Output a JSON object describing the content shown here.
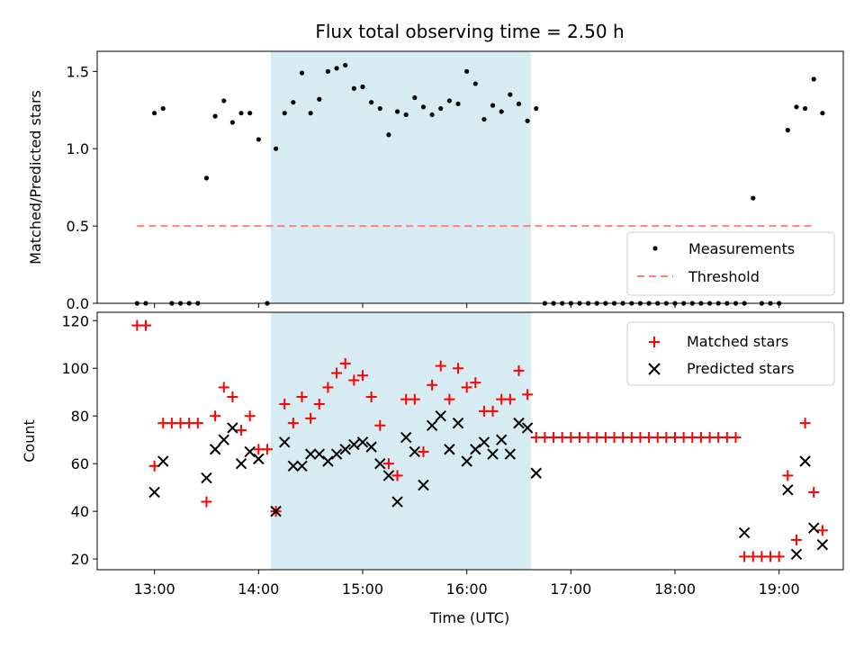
{
  "title": "Flux total observing time = 2.50 h",
  "xlabel": "Time (UTC)",
  "colors": {
    "measurement": "#000000",
    "threshold": "#ff8080",
    "matched": "#ff0000",
    "predicted": "#000000",
    "span": "#add8e6"
  },
  "chart_data": [
    {
      "type": "scatter",
      "ylabel": "Matched/Predicted stars",
      "xlim": [
        "12:27",
        "19:37"
      ],
      "ylim": [
        0,
        1.63
      ],
      "yticks": [
        0.0,
        0.5,
        1.0,
        1.5
      ],
      "ytick_labels": [
        "0.0",
        "0.5",
        "1.0",
        "1.5"
      ],
      "xticks": [
        "13:00",
        "14:00",
        "15:00",
        "16:00",
        "17:00",
        "18:00",
        "19:00"
      ],
      "shaded_span": [
        "14:07",
        "16:37"
      ],
      "legend": {
        "position": "lower right",
        "entries": [
          "Measurements",
          "Threshold"
        ]
      },
      "threshold": {
        "name": "Threshold",
        "value": 0.5,
        "x_range": [
          "12:50",
          "19:20"
        ]
      },
      "series": [
        {
          "name": "Measurements",
          "points": [
            [
              "12:50",
              0
            ],
            [
              "12:55",
              0
            ],
            [
              "13:00",
              1.23
            ],
            [
              "13:05",
              1.26
            ],
            [
              "13:10",
              0
            ],
            [
              "13:15",
              0
            ],
            [
              "13:20",
              0
            ],
            [
              "13:25",
              0
            ],
            [
              "13:30",
              0.81
            ],
            [
              "13:35",
              1.21
            ],
            [
              "13:40",
              1.31
            ],
            [
              "13:45",
              1.17
            ],
            [
              "13:50",
              1.23
            ],
            [
              "13:55",
              1.23
            ],
            [
              "14:00",
              1.06
            ],
            [
              "14:05",
              0
            ],
            [
              "14:10",
              1.0
            ],
            [
              "14:15",
              1.23
            ],
            [
              "14:20",
              1.3
            ],
            [
              "14:25",
              1.49
            ],
            [
              "14:30",
              1.23
            ],
            [
              "14:35",
              1.32
            ],
            [
              "14:40",
              1.5
            ],
            [
              "14:45",
              1.52
            ],
            [
              "14:50",
              1.54
            ],
            [
              "14:55",
              1.39
            ],
            [
              "15:00",
              1.4
            ],
            [
              "15:05",
              1.3
            ],
            [
              "15:10",
              1.26
            ],
            [
              "15:15",
              1.09
            ],
            [
              "15:20",
              1.24
            ],
            [
              "15:25",
              1.22
            ],
            [
              "15:30",
              1.33
            ],
            [
              "15:35",
              1.27
            ],
            [
              "15:40",
              1.22
            ],
            [
              "15:45",
              1.26
            ],
            [
              "15:50",
              1.31
            ],
            [
              "15:55",
              1.29
            ],
            [
              "16:00",
              1.5
            ],
            [
              "16:05",
              1.42
            ],
            [
              "16:10",
              1.19
            ],
            [
              "16:15",
              1.28
            ],
            [
              "16:20",
              1.24
            ],
            [
              "16:25",
              1.35
            ],
            [
              "16:30",
              1.29
            ],
            [
              "16:35",
              1.18
            ],
            [
              "16:40",
              1.26
            ],
            [
              "16:45",
              0
            ],
            [
              "16:50",
              0
            ],
            [
              "16:55",
              0
            ],
            [
              "17:00",
              0
            ],
            [
              "17:05",
              0
            ],
            [
              "17:10",
              0
            ],
            [
              "17:15",
              0
            ],
            [
              "17:20",
              0
            ],
            [
              "17:25",
              0
            ],
            [
              "17:30",
              0
            ],
            [
              "17:35",
              0
            ],
            [
              "17:40",
              0
            ],
            [
              "17:45",
              0
            ],
            [
              "17:50",
              0
            ],
            [
              "17:55",
              0
            ],
            [
              "18:00",
              0
            ],
            [
              "18:05",
              0
            ],
            [
              "18:10",
              0
            ],
            [
              "18:15",
              0
            ],
            [
              "18:20",
              0
            ],
            [
              "18:25",
              0
            ],
            [
              "18:30",
              0
            ],
            [
              "18:35",
              0
            ],
            [
              "18:40",
              0
            ],
            [
              "18:45",
              0.68
            ],
            [
              "18:50",
              0
            ],
            [
              "18:55",
              0
            ],
            [
              "19:00",
              0
            ],
            [
              "19:05",
              1.12
            ],
            [
              "19:10",
              1.27
            ],
            [
              "19:15",
              1.26
            ],
            [
              "19:20",
              1.45
            ],
            [
              "19:25",
              1.23
            ]
          ]
        }
      ]
    },
    {
      "type": "scatter",
      "ylabel": "Count",
      "xlim": [
        "12:27",
        "19:37"
      ],
      "ylim": [
        15.5,
        123.5
      ],
      "yticks": [
        20,
        40,
        60,
        80,
        100,
        120
      ],
      "ytick_labels": [
        "20",
        "40",
        "60",
        "80",
        "100",
        "120"
      ],
      "xticks": [
        "13:00",
        "14:00",
        "15:00",
        "16:00",
        "17:00",
        "18:00",
        "19:00"
      ],
      "shaded_span": [
        "14:07",
        "16:37"
      ],
      "legend": {
        "position": "upper right",
        "entries": [
          "Matched stars",
          "Predicted stars"
        ]
      },
      "series": [
        {
          "name": "Matched stars",
          "points": [
            [
              "12:50",
              118
            ],
            [
              "12:55",
              118
            ],
            [
              "13:00",
              59
            ],
            [
              "13:05",
              77
            ],
            [
              "13:10",
              77
            ],
            [
              "13:15",
              77
            ],
            [
              "13:20",
              77
            ],
            [
              "13:25",
              77
            ],
            [
              "13:30",
              44
            ],
            [
              "13:35",
              80
            ],
            [
              "13:40",
              92
            ],
            [
              "13:45",
              88
            ],
            [
              "13:50",
              74
            ],
            [
              "13:55",
              80
            ],
            [
              "14:00",
              66
            ],
            [
              "14:05",
              66
            ],
            [
              "14:10",
              40
            ],
            [
              "14:15",
              85
            ],
            [
              "14:20",
              77
            ],
            [
              "14:25",
              88
            ],
            [
              "14:30",
              79
            ],
            [
              "14:35",
              85
            ],
            [
              "14:40",
              92
            ],
            [
              "14:45",
              98
            ],
            [
              "14:50",
              102
            ],
            [
              "14:55",
              95
            ],
            [
              "15:00",
              97
            ],
            [
              "15:05",
              88
            ],
            [
              "15:10",
              76
            ],
            [
              "15:15",
              60
            ],
            [
              "15:20",
              55
            ],
            [
              "15:25",
              87
            ],
            [
              "15:30",
              87
            ],
            [
              "15:35",
              65
            ],
            [
              "15:40",
              93
            ],
            [
              "15:45",
              101
            ],
            [
              "15:50",
              87
            ],
            [
              "15:55",
              100
            ],
            [
              "16:00",
              92
            ],
            [
              "16:05",
              94
            ],
            [
              "16:10",
              82
            ],
            [
              "16:15",
              82
            ],
            [
              "16:20",
              87
            ],
            [
              "16:25",
              87
            ],
            [
              "16:30",
              99
            ],
            [
              "16:35",
              89
            ],
            [
              "16:40",
              71
            ],
            [
              "16:45",
              71
            ],
            [
              "16:50",
              71
            ],
            [
              "16:55",
              71
            ],
            [
              "17:00",
              71
            ],
            [
              "17:05",
              71
            ],
            [
              "17:10",
              71
            ],
            [
              "17:15",
              71
            ],
            [
              "17:20",
              71
            ],
            [
              "17:25",
              71
            ],
            [
              "17:30",
              71
            ],
            [
              "17:35",
              71
            ],
            [
              "17:40",
              71
            ],
            [
              "17:45",
              71
            ],
            [
              "17:50",
              71
            ],
            [
              "17:55",
              71
            ],
            [
              "18:00",
              71
            ],
            [
              "18:05",
              71
            ],
            [
              "18:10",
              71
            ],
            [
              "18:15",
              71
            ],
            [
              "18:20",
              71
            ],
            [
              "18:25",
              71
            ],
            [
              "18:30",
              71
            ],
            [
              "18:35",
              71
            ],
            [
              "18:40",
              21
            ],
            [
              "18:45",
              21
            ],
            [
              "18:50",
              21
            ],
            [
              "18:55",
              21
            ],
            [
              "19:00",
              21
            ],
            [
              "19:05",
              55
            ],
            [
              "19:10",
              28
            ],
            [
              "19:15",
              77
            ],
            [
              "19:20",
              48
            ],
            [
              "19:25",
              32
            ]
          ]
        },
        {
          "name": "Predicted stars",
          "points": [
            [
              "13:00",
              48
            ],
            [
              "13:05",
              61
            ],
            [
              "13:30",
              54
            ],
            [
              "13:35",
              66
            ],
            [
              "13:40",
              70
            ],
            [
              "13:45",
              75
            ],
            [
              "13:50",
              60
            ],
            [
              "13:55",
              65
            ],
            [
              "14:00",
              62
            ],
            [
              "14:10",
              40
            ],
            [
              "14:15",
              69
            ],
            [
              "14:20",
              59
            ],
            [
              "14:25",
              59
            ],
            [
              "14:30",
              64
            ],
            [
              "14:35",
              64
            ],
            [
              "14:40",
              61
            ],
            [
              "14:45",
              64
            ],
            [
              "14:50",
              66
            ],
            [
              "14:55",
              68
            ],
            [
              "15:00",
              69
            ],
            [
              "15:05",
              67
            ],
            [
              "15:10",
              60
            ],
            [
              "15:15",
              55
            ],
            [
              "15:20",
              44
            ],
            [
              "15:25",
              71
            ],
            [
              "15:30",
              65
            ],
            [
              "15:35",
              51
            ],
            [
              "15:40",
              76
            ],
            [
              "15:45",
              80
            ],
            [
              "15:50",
              66
            ],
            [
              "15:55",
              77
            ],
            [
              "16:00",
              61
            ],
            [
              "16:05",
              66
            ],
            [
              "16:10",
              69
            ],
            [
              "16:15",
              64
            ],
            [
              "16:20",
              70
            ],
            [
              "16:25",
              64
            ],
            [
              "16:30",
              77
            ],
            [
              "16:35",
              75
            ],
            [
              "16:40",
              56
            ],
            [
              "18:40",
              31
            ],
            [
              "19:05",
              49
            ],
            [
              "19:10",
              22
            ],
            [
              "19:15",
              61
            ],
            [
              "19:20",
              33
            ],
            [
              "19:25",
              26
            ]
          ]
        }
      ]
    }
  ]
}
